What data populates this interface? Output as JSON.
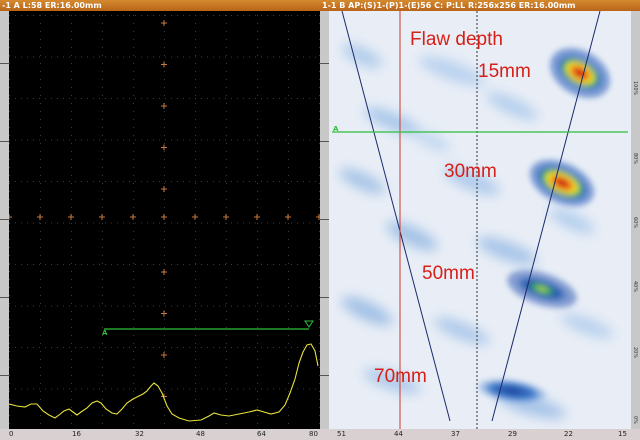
{
  "ascan": {
    "title": "-1 A L:58 ER:16.00mm",
    "gate_label": "A",
    "x_ticks": [
      "0",
      "16",
      "32",
      "48",
      "64",
      "80"
    ]
  },
  "bscan": {
    "title": "1-1 B AP:(S)1-(P)1-(E)56 C: P:LL R:256x256 ER:16.00mm",
    "gate_label": "A",
    "x_ticks": [
      "51",
      "44",
      "37",
      "29",
      "22",
      "15"
    ],
    "right_scale": [
      "100%",
      "80%",
      "60%",
      "40%",
      "20%",
      "0%"
    ],
    "annotations": {
      "heading": "Flaw depth",
      "d15": "15mm",
      "d30": "30mm",
      "d50": "50mm",
      "d70": "70mm"
    }
  },
  "colors": {
    "gate_line": "#2fbf3a",
    "signal": "#e8e23a",
    "cursor": "#d03a2a",
    "annotation": "#d61f17"
  }
}
